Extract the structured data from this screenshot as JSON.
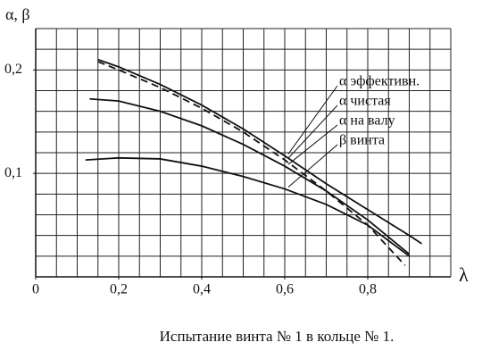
{
  "chart_data": {
    "type": "line",
    "caption": "Испытание винта № 1 в кольце № 1.",
    "y_label": "α, β",
    "x_label": "λ",
    "xlim": [
      0,
      1.0
    ],
    "ylim": [
      0,
      0.24
    ],
    "xticks": [
      {
        "value": 0,
        "label": "0"
      },
      {
        "value": 0.2,
        "label": "0,2"
      },
      {
        "value": 0.4,
        "label": "0,4"
      },
      {
        "value": 0.6,
        "label": "0,6"
      },
      {
        "value": 0.8,
        "label": "0,8"
      }
    ],
    "yticks": [
      {
        "value": 0.1,
        "label": "0,1"
      },
      {
        "value": 0.2,
        "label": "0,2"
      }
    ],
    "grid": true,
    "xgrid": [
      0.05,
      0.1,
      0.15,
      0.2,
      0.25,
      0.3,
      0.35,
      0.4,
      0.45,
      0.5,
      0.55,
      0.6,
      0.65,
      0.7,
      0.75,
      0.8,
      0.85,
      0.9,
      0.95,
      1.0
    ],
    "ygrid": [
      0.02,
      0.04,
      0.06,
      0.08,
      0.1,
      0.12,
      0.14,
      0.16,
      0.18,
      0.2,
      0.22,
      0.24
    ],
    "series": [
      {
        "name": "α эффективн.",
        "color": "#111111",
        "dash": false,
        "x": [
          0.15,
          0.2,
          0.3,
          0.4,
          0.5,
          0.6,
          0.7,
          0.8,
          0.9,
          0.93
        ],
        "values": [
          0.21,
          0.203,
          0.186,
          0.166,
          0.143,
          0.117,
          0.09,
          0.065,
          0.04,
          0.032
        ]
      },
      {
        "name": "α чистая",
        "color": "#111111",
        "dash": true,
        "x": [
          0.15,
          0.2,
          0.3,
          0.4,
          0.5,
          0.6,
          0.7,
          0.8,
          0.89
        ],
        "values": [
          0.208,
          0.2,
          0.183,
          0.163,
          0.14,
          0.113,
          0.083,
          0.05,
          0.011
        ]
      },
      {
        "name": "α на валу",
        "color": "#111111",
        "dash": false,
        "x": [
          0.13,
          0.2,
          0.3,
          0.4,
          0.5,
          0.6,
          0.7,
          0.8,
          0.9
        ],
        "values": [
          0.172,
          0.17,
          0.16,
          0.146,
          0.128,
          0.107,
          0.083,
          0.055,
          0.022
        ]
      },
      {
        "name": "β винта",
        "color": "#111111",
        "dash": false,
        "x": [
          0.12,
          0.2,
          0.3,
          0.4,
          0.5,
          0.6,
          0.7,
          0.8,
          0.9
        ],
        "values": [
          0.113,
          0.115,
          0.114,
          0.107,
          0.097,
          0.085,
          0.07,
          0.05,
          0.02
        ]
      }
    ]
  }
}
